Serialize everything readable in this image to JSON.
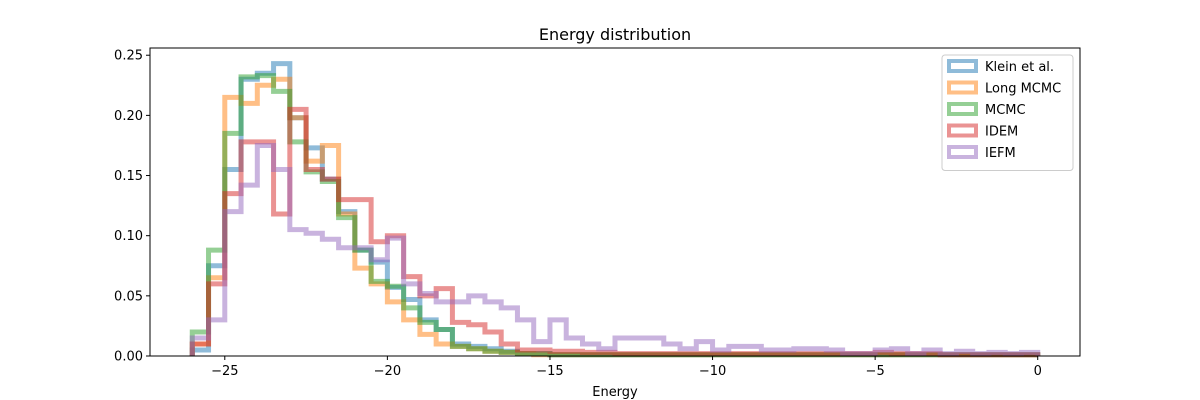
{
  "chart_data": {
    "type": "histogram-step",
    "title": "Energy distribution",
    "xlabel": "Energy",
    "ylabel": "",
    "xlim": [
      -27.3,
      1.3
    ],
    "ylim": [
      0,
      0.256
    ],
    "xticks": [
      -25,
      -20,
      -15,
      -10,
      -5,
      0
    ],
    "xtick_labels": [
      "−25",
      "−20",
      "−15",
      "−10",
      "−5",
      "0"
    ],
    "yticks": [
      0.0,
      0.05,
      0.1,
      0.15,
      0.2,
      0.25
    ],
    "ytick_labels": [
      "0.00",
      "0.05",
      "0.10",
      "0.15",
      "0.20",
      "0.25"
    ],
    "grid": false,
    "legend_position": "top-right",
    "bin_start": -26.0,
    "bin_width": 0.5,
    "series": [
      {
        "name": "Klein et al.",
        "color": "#1f77b4",
        "values": [
          0.005,
          0.075,
          0.155,
          0.23,
          0.235,
          0.243,
          0.198,
          0.173,
          0.147,
          0.12,
          0.088,
          0.078,
          0.057,
          0.047,
          0.03,
          0.022,
          0.01,
          0.008,
          0.006,
          0.004,
          0.002,
          0.002,
          0.001,
          0.001,
          0.001,
          0.001,
          0.001,
          0.001,
          0.001,
          0.001,
          0.001,
          0.001,
          0.001,
          0.001,
          0.001,
          0.001,
          0.001,
          0.001,
          0.001,
          0.001,
          0.001,
          0.001,
          0.001,
          0.001,
          0.001,
          0.001,
          0.001,
          0.001,
          0.001,
          0.001,
          0.001,
          0.001
        ]
      },
      {
        "name": "Long MCMC",
        "color": "#ff7f0e",
        "values": [
          0.01,
          0.065,
          0.215,
          0.21,
          0.225,
          0.23,
          0.198,
          0.162,
          0.175,
          0.118,
          0.073,
          0.06,
          0.045,
          0.03,
          0.018,
          0.01,
          0.008,
          0.006,
          0.004,
          0.003,
          0.002,
          0.001,
          0.001,
          0.001,
          0.001,
          0.001,
          0.001,
          0.001,
          0.001,
          0.001,
          0.001,
          0.001,
          0.001,
          0.001,
          0.001,
          0.001,
          0.001,
          0.001,
          0.001,
          0.001,
          0.001,
          0.001,
          0.001,
          0.001,
          0.001,
          0.001,
          0.001,
          0.001,
          0.001,
          0.001,
          0.001,
          0.001
        ]
      },
      {
        "name": "MCMC",
        "color": "#2ca02c",
        "values": [
          0.02,
          0.088,
          0.185,
          0.232,
          0.233,
          0.22,
          0.178,
          0.153,
          0.145,
          0.115,
          0.088,
          0.062,
          0.058,
          0.04,
          0.028,
          0.022,
          0.008,
          0.006,
          0.004,
          0.003,
          0.002,
          0.002,
          0.001,
          0.001,
          0.001,
          0.001,
          0.001,
          0.001,
          0.001,
          0.001,
          0.001,
          0.001,
          0.001,
          0.001,
          0.001,
          0.001,
          0.001,
          0.001,
          0.001,
          0.001,
          0.001,
          0.001,
          0.001,
          0.001,
          0.001,
          0.001,
          0.001,
          0.001,
          0.001,
          0.001,
          0.001,
          0.001
        ]
      },
      {
        "name": "IDEM",
        "color": "#d62728",
        "values": [
          0.01,
          0.06,
          0.135,
          0.178,
          0.178,
          0.118,
          0.205,
          0.155,
          0.147,
          0.13,
          0.13,
          0.095,
          0.1,
          0.066,
          0.05,
          0.056,
          0.028,
          0.026,
          0.02,
          0.01,
          0.005,
          0.005,
          0.004,
          0.004,
          0.003,
          0.003,
          0.002,
          0.002,
          0.002,
          0.002,
          0.002,
          0.002,
          0.002,
          0.002,
          0.002,
          0.002,
          0.002,
          0.002,
          0.002,
          0.002,
          0.002,
          0.002,
          0.003,
          0.002,
          0.002,
          0.002,
          0.001,
          0.001,
          0.001,
          0.001,
          0.001,
          0.001
        ]
      },
      {
        "name": "IEFM",
        "color": "#9467bd",
        "values": [
          0.015,
          0.03,
          0.12,
          0.142,
          0.175,
          0.155,
          0.105,
          0.102,
          0.097,
          0.09,
          0.09,
          0.08,
          0.098,
          0.06,
          0.052,
          0.045,
          0.045,
          0.05,
          0.045,
          0.04,
          0.03,
          0.012,
          0.03,
          0.015,
          0.01,
          0.006,
          0.015,
          0.015,
          0.015,
          0.01,
          0.006,
          0.012,
          0.005,
          0.008,
          0.008,
          0.005,
          0.005,
          0.006,
          0.006,
          0.005,
          0.002,
          0.002,
          0.005,
          0.006,
          0.002,
          0.005,
          0.002,
          0.004,
          0.002,
          0.003,
          0.002,
          0.003
        ]
      }
    ]
  }
}
